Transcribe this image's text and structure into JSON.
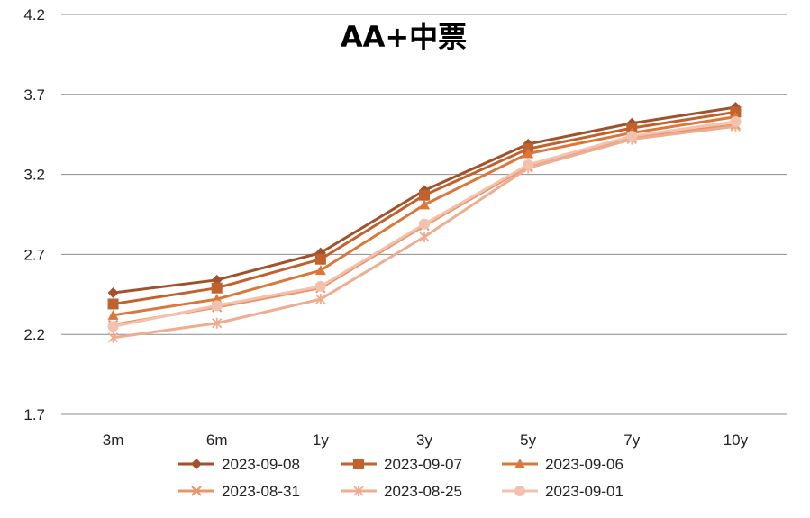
{
  "chart_data": {
    "type": "line",
    "title": "AA+中票",
    "xlabel": "",
    "ylabel": "",
    "categories": [
      "3m",
      "6m",
      "1y",
      "3y",
      "5y",
      "7y",
      "10y"
    ],
    "yticks": [
      "1.7",
      "2.2",
      "2.7",
      "3.2",
      "3.7",
      "4.2"
    ],
    "ylim": [
      1.7,
      4.2
    ],
    "grid": true,
    "legend_position": "bottom",
    "series": [
      {
        "name": "2023-09-08",
        "color": "#A0522D",
        "marker": "diamond",
        "values": [
          2.46,
          2.54,
          2.71,
          3.1,
          3.39,
          3.52,
          3.62
        ]
      },
      {
        "name": "2023-09-07",
        "color": "#C0622D",
        "marker": "square",
        "values": [
          2.39,
          2.49,
          2.67,
          3.07,
          3.36,
          3.49,
          3.59
        ]
      },
      {
        "name": "2023-09-06",
        "color": "#D9783A",
        "marker": "triangle",
        "values": [
          2.32,
          2.42,
          2.6,
          3.01,
          3.33,
          3.46,
          3.56
        ]
      },
      {
        "name": "2023-08-31",
        "color": "#E8956A",
        "marker": "x",
        "values": [
          2.26,
          2.37,
          2.49,
          2.88,
          3.25,
          3.43,
          3.51
        ]
      },
      {
        "name": "2023-08-25",
        "color": "#EDAD90",
        "marker": "star",
        "values": [
          2.18,
          2.27,
          2.42,
          2.81,
          3.24,
          3.42,
          3.5
        ]
      },
      {
        "name": "2023-09-01",
        "color": "#F3C2AE",
        "marker": "circle",
        "values": [
          2.25,
          2.38,
          2.5,
          2.89,
          3.26,
          3.44,
          3.53
        ]
      }
    ]
  }
}
